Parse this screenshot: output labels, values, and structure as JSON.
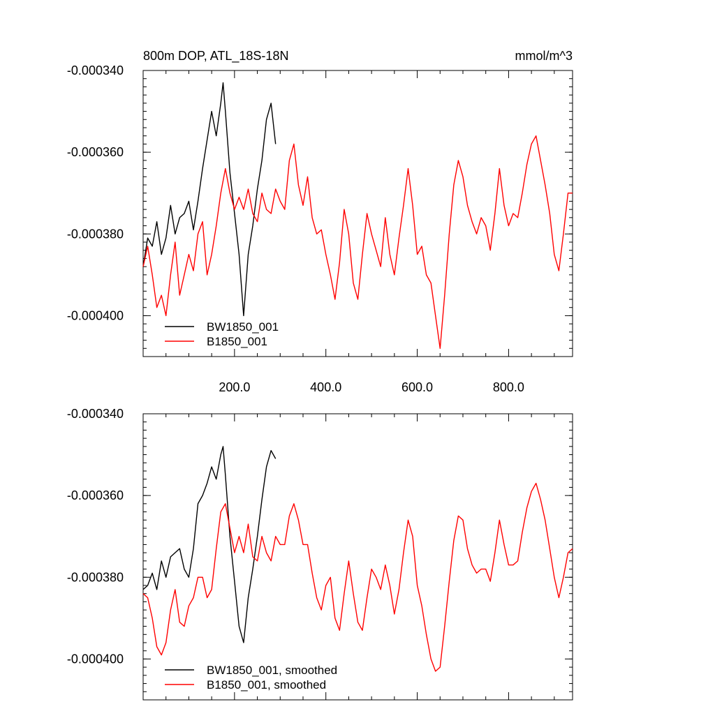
{
  "chart_data": [
    {
      "type": "line",
      "title": "800m DOP, ATL_18S-18N",
      "units": "mmol/m^3",
      "xlim": [
        0,
        940
      ],
      "ylim": [
        -0.00041,
        -0.00034
      ],
      "x_tick_labels": [
        "200.0",
        "400.0",
        "600.0",
        "800.0"
      ],
      "y_tick_labels": [
        "-0.000340",
        "-0.000360",
        "-0.000380",
        "-0.000400"
      ],
      "y_tick_values": [
        -0.00034,
        -0.00036,
        -0.00038,
        -0.0004
      ],
      "legend_location": "lower-left",
      "series": [
        {
          "name": "BW1850_001",
          "color": "#000000",
          "x": [
            0,
            10,
            20,
            30,
            40,
            50,
            60,
            70,
            80,
            90,
            100,
            110,
            120,
            130,
            140,
            150,
            160,
            170,
            175,
            180,
            190,
            200,
            210,
            220,
            230,
            240,
            250,
            260,
            270,
            280,
            290
          ],
          "y": [
            -0.000388,
            -0.000381,
            -0.000383,
            -0.000377,
            -0.000385,
            -0.000381,
            -0.000373,
            -0.00038,
            -0.000376,
            -0.000375,
            -0.000372,
            -0.000379,
            -0.000372,
            -0.000364,
            -0.000357,
            -0.00035,
            -0.000356,
            -0.000348,
            -0.000343,
            -0.00035,
            -0.000365,
            -0.000375,
            -0.000385,
            -0.0004,
            -0.000385,
            -0.000378,
            -0.000369,
            -0.000362,
            -0.000352,
            -0.000348,
            -0.000358
          ]
        },
        {
          "name": "B1850_001",
          "color": "#ff0000",
          "x": [
            0,
            10,
            20,
            30,
            40,
            50,
            60,
            70,
            80,
            90,
            100,
            110,
            120,
            130,
            140,
            150,
            160,
            170,
            180,
            190,
            200,
            210,
            220,
            230,
            240,
            250,
            260,
            270,
            280,
            290,
            300,
            310,
            320,
            330,
            340,
            350,
            360,
            370,
            380,
            390,
            400,
            410,
            420,
            430,
            440,
            450,
            460,
            470,
            480,
            490,
            500,
            510,
            520,
            530,
            540,
            550,
            560,
            570,
            580,
            590,
            600,
            610,
            620,
            630,
            640,
            650,
            660,
            670,
            680,
            690,
            700,
            710,
            720,
            730,
            740,
            750,
            760,
            770,
            780,
            790,
            800,
            810,
            820,
            830,
            840,
            850,
            860,
            870,
            880,
            890,
            900,
            910,
            920,
            930,
            940
          ],
          "y": [
            -0.000388,
            -0.000383,
            -0.00039,
            -0.000398,
            -0.000395,
            -0.0004,
            -0.00039,
            -0.000382,
            -0.000395,
            -0.00039,
            -0.000385,
            -0.000389,
            -0.00038,
            -0.000377,
            -0.00039,
            -0.000385,
            -0.000378,
            -0.00037,
            -0.000364,
            -0.00037,
            -0.000374,
            -0.000371,
            -0.000374,
            -0.000369,
            -0.000375,
            -0.000377,
            -0.00037,
            -0.000374,
            -0.000375,
            -0.000369,
            -0.000372,
            -0.000374,
            -0.000362,
            -0.000358,
            -0.000368,
            -0.000373,
            -0.000366,
            -0.000376,
            -0.00038,
            -0.000379,
            -0.000385,
            -0.00039,
            -0.000396,
            -0.000387,
            -0.000374,
            -0.00038,
            -0.000392,
            -0.000396,
            -0.000385,
            -0.000375,
            -0.00038,
            -0.000384,
            -0.000388,
            -0.000376,
            -0.000385,
            -0.00039,
            -0.000381,
            -0.000373,
            -0.000364,
            -0.000373,
            -0.000385,
            -0.000383,
            -0.00039,
            -0.000392,
            -0.0004,
            -0.000408,
            -0.000395,
            -0.00038,
            -0.000368,
            -0.000362,
            -0.000366,
            -0.000373,
            -0.000377,
            -0.00038,
            -0.000376,
            -0.000378,
            -0.000384,
            -0.000375,
            -0.000364,
            -0.000373,
            -0.000378,
            -0.000375,
            -0.000376,
            -0.00037,
            -0.000363,
            -0.000358,
            -0.000356,
            -0.000362,
            -0.000368,
            -0.000375,
            -0.000385,
            -0.000389,
            -0.00038,
            -0.00037,
            -0.00037
          ]
        }
      ]
    },
    {
      "type": "line",
      "title": "",
      "xlim": [
        0,
        940
      ],
      "ylim": [
        -0.00041,
        -0.00034
      ],
      "y_tick_labels": [
        "-0.000340",
        "-0.000360",
        "-0.000380",
        "-0.000400"
      ],
      "y_tick_values": [
        -0.00034,
        -0.00036,
        -0.00038,
        -0.0004
      ],
      "legend_location": "lower-left",
      "series": [
        {
          "name": "BW1850_001, smoothed",
          "color": "#000000",
          "x": [
            0,
            10,
            20,
            30,
            40,
            50,
            60,
            70,
            80,
            90,
            100,
            110,
            120,
            130,
            140,
            150,
            160,
            170,
            175,
            180,
            190,
            200,
            210,
            220,
            230,
            240,
            250,
            260,
            270,
            280,
            290
          ],
          "y": [
            -0.000383,
            -0.000382,
            -0.000379,
            -0.000383,
            -0.000376,
            -0.00038,
            -0.000375,
            -0.000374,
            -0.000373,
            -0.000378,
            -0.00038,
            -0.000373,
            -0.000362,
            -0.00036,
            -0.000357,
            -0.000353,
            -0.000356,
            -0.00035,
            -0.000348,
            -0.000355,
            -0.00037,
            -0.000381,
            -0.000392,
            -0.000396,
            -0.000385,
            -0.000378,
            -0.00037,
            -0.000361,
            -0.000353,
            -0.000349,
            -0.000351
          ]
        },
        {
          "name": "B1850_001, smoothed",
          "color": "#ff0000",
          "x": [
            0,
            10,
            20,
            30,
            40,
            50,
            60,
            70,
            80,
            90,
            100,
            110,
            120,
            130,
            140,
            150,
            160,
            170,
            180,
            190,
            200,
            210,
            220,
            230,
            240,
            250,
            260,
            270,
            280,
            290,
            300,
            310,
            320,
            330,
            340,
            350,
            360,
            370,
            380,
            390,
            400,
            410,
            420,
            430,
            440,
            450,
            460,
            470,
            480,
            490,
            500,
            510,
            520,
            530,
            540,
            550,
            560,
            570,
            580,
            590,
            600,
            610,
            620,
            630,
            640,
            650,
            660,
            670,
            680,
            690,
            700,
            710,
            720,
            730,
            740,
            750,
            760,
            770,
            780,
            790,
            800,
            810,
            820,
            830,
            840,
            850,
            860,
            870,
            880,
            890,
            900,
            910,
            920,
            930,
            940
          ],
          "y": [
            -0.000384,
            -0.000385,
            -0.00039,
            -0.000397,
            -0.000399,
            -0.000396,
            -0.000388,
            -0.000383,
            -0.000391,
            -0.000392,
            -0.000387,
            -0.000385,
            -0.00038,
            -0.00038,
            -0.000385,
            -0.000383,
            -0.000373,
            -0.000364,
            -0.000362,
            -0.000368,
            -0.000374,
            -0.00037,
            -0.000374,
            -0.000367,
            -0.000375,
            -0.000376,
            -0.00037,
            -0.000374,
            -0.000376,
            -0.00037,
            -0.000372,
            -0.000372,
            -0.000365,
            -0.000362,
            -0.000366,
            -0.000372,
            -0.000372,
            -0.000379,
            -0.000385,
            -0.000388,
            -0.000382,
            -0.00038,
            -0.00039,
            -0.000393,
            -0.000384,
            -0.000376,
            -0.000384,
            -0.000391,
            -0.000393,
            -0.000385,
            -0.000378,
            -0.00038,
            -0.000383,
            -0.000377,
            -0.000382,
            -0.000389,
            -0.000383,
            -0.000374,
            -0.000366,
            -0.00037,
            -0.000382,
            -0.000387,
            -0.000394,
            -0.0004,
            -0.000403,
            -0.000402,
            -0.000392,
            -0.000381,
            -0.000371,
            -0.000365,
            -0.000366,
            -0.000373,
            -0.000377,
            -0.000379,
            -0.000378,
            -0.000378,
            -0.000381,
            -0.000374,
            -0.000366,
            -0.000372,
            -0.000377,
            -0.000377,
            -0.000376,
            -0.000369,
            -0.000363,
            -0.000359,
            -0.000357,
            -0.000361,
            -0.000366,
            -0.000373,
            -0.00038,
            -0.000385,
            -0.00038,
            -0.000374,
            -0.000373
          ]
        }
      ]
    }
  ]
}
